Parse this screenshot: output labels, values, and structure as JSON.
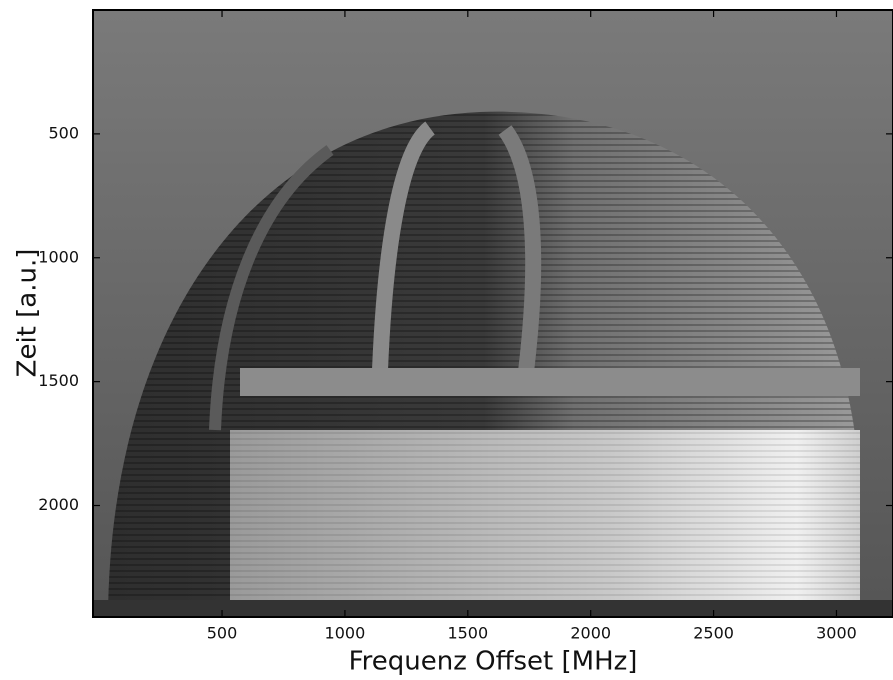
{
  "chart_data": {
    "type": "image",
    "xlabel": "Frequenz Offset [MHz]",
    "ylabel": "Zeit [a.u.]",
    "xlim": [
      -25,
      3230
    ],
    "xticks": [
      500,
      1000,
      1500,
      2000,
      2500,
      3000
    ],
    "ylim": [
      2450,
      0
    ],
    "yticks": [
      500,
      1000,
      1500,
      2000
    ]
  }
}
